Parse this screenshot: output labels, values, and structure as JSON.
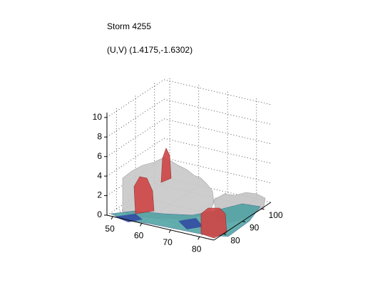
{
  "chart_data": {
    "type": "isosurface3d",
    "title": "Storm 4255",
    "subtitle": "(U,V) (1.4175,-1.6302)",
    "xlim": [
      48,
      85
    ],
    "xticks": [
      50,
      60,
      70,
      80
    ],
    "ylim": [
      75,
      105
    ],
    "yticks": [
      80,
      90,
      100
    ],
    "zlim": [
      0,
      10.5
    ],
    "zticks": [
      0,
      2,
      4,
      6,
      8,
      10
    ],
    "grid": true
  }
}
